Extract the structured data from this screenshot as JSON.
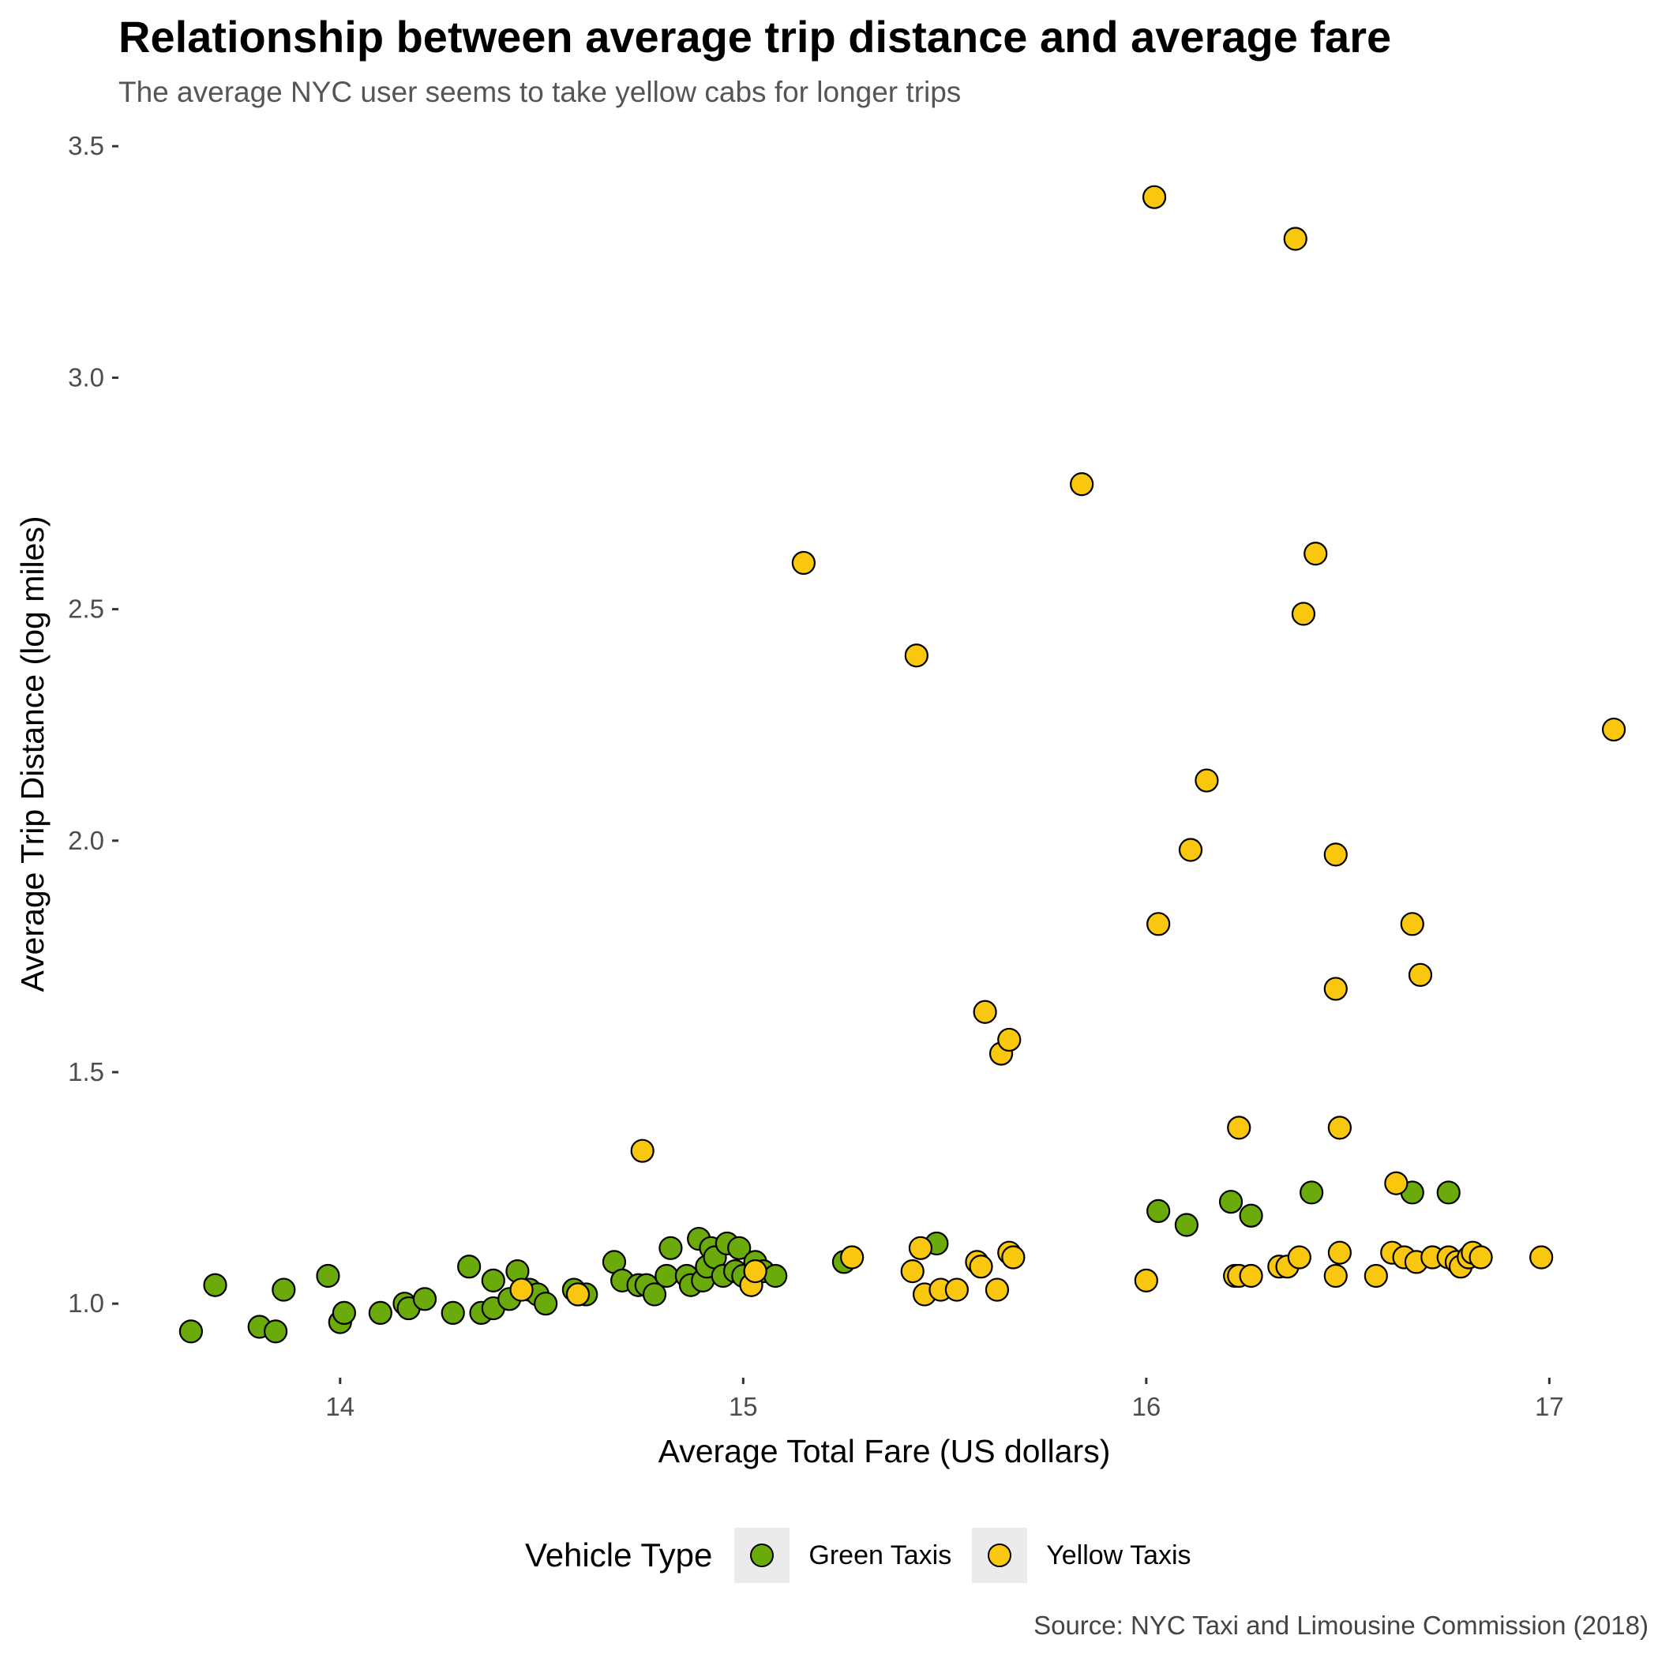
{
  "chart_data": {
    "type": "scatter",
    "title": "Relationship between average trip distance and average fare",
    "subtitle": "The average NYC user seems to take yellow cabs for longer trips",
    "caption": "Source: NYC Taxi and Limousine Commission (2018)",
    "xlabel": "Average Total Fare (US dollars)",
    "ylabel": "Average Trip Distance (log miles)",
    "xlim": [
      13.45,
      17.25
    ],
    "ylim": [
      0.84,
      3.56
    ],
    "xticks": [
      14,
      15,
      16,
      17
    ],
    "xtick_labels": [
      "14",
      "15",
      "16",
      "17"
    ],
    "yticks": [
      1.0,
      1.5,
      2.0,
      2.5,
      3.0,
      3.5
    ],
    "ytick_labels": [
      "1.0",
      "1.5",
      "2.0",
      "2.5",
      "3.0",
      "3.5"
    ],
    "grid": false,
    "legend": {
      "title": "Vehicle Type",
      "position": "bottom"
    },
    "series": [
      {
        "name": "Green Taxis",
        "color": "#6aaa0a",
        "points": [
          [
            13.63,
            0.94
          ],
          [
            13.69,
            1.04
          ],
          [
            13.8,
            0.95
          ],
          [
            13.84,
            0.94
          ],
          [
            13.86,
            1.03
          ],
          [
            13.97,
            1.06
          ],
          [
            14.0,
            0.96
          ],
          [
            14.01,
            0.98
          ],
          [
            14.1,
            0.98
          ],
          [
            14.16,
            1.0
          ],
          [
            14.17,
            0.99
          ],
          [
            14.21,
            1.01
          ],
          [
            14.28,
            0.98
          ],
          [
            14.32,
            1.08
          ],
          [
            14.35,
            0.98
          ],
          [
            14.38,
            1.05
          ],
          [
            14.38,
            0.99
          ],
          [
            14.42,
            1.01
          ],
          [
            14.44,
            1.07
          ],
          [
            14.47,
            1.03
          ],
          [
            14.49,
            1.02
          ],
          [
            14.51,
            1.0
          ],
          [
            14.58,
            1.03
          ],
          [
            14.59,
            1.02
          ],
          [
            14.61,
            1.02
          ],
          [
            14.68,
            1.09
          ],
          [
            14.7,
            1.05
          ],
          [
            14.74,
            1.04
          ],
          [
            14.76,
            1.04
          ],
          [
            14.78,
            1.02
          ],
          [
            14.81,
            1.06
          ],
          [
            14.82,
            1.12
          ],
          [
            14.86,
            1.06
          ],
          [
            14.87,
            1.04
          ],
          [
            14.89,
            1.14
          ],
          [
            14.9,
            1.05
          ],
          [
            14.91,
            1.08
          ],
          [
            14.92,
            1.12
          ],
          [
            14.93,
            1.1
          ],
          [
            14.95,
            1.06
          ],
          [
            14.96,
            1.13
          ],
          [
            14.98,
            1.07
          ],
          [
            14.99,
            1.12
          ],
          [
            15.0,
            1.06
          ],
          [
            15.03,
            1.09
          ],
          [
            15.05,
            1.07
          ],
          [
            15.08,
            1.06
          ],
          [
            15.25,
            1.09
          ],
          [
            15.48,
            1.13
          ],
          [
            16.03,
            1.2
          ],
          [
            16.1,
            1.17
          ],
          [
            16.21,
            1.22
          ],
          [
            16.26,
            1.19
          ],
          [
            16.41,
            1.24
          ],
          [
            16.66,
            1.24
          ],
          [
            16.75,
            1.24
          ]
        ]
      },
      {
        "name": "Yellow Taxis",
        "color": "#f9c80e",
        "points": [
          [
            14.45,
            1.03
          ],
          [
            14.59,
            1.02
          ],
          [
            14.75,
            1.33
          ],
          [
            15.02,
            1.04
          ],
          [
            15.03,
            1.07
          ],
          [
            15.15,
            2.6
          ],
          [
            15.27,
            1.1
          ],
          [
            15.42,
            1.07
          ],
          [
            15.43,
            2.4
          ],
          [
            15.44,
            1.12
          ],
          [
            15.45,
            1.02
          ],
          [
            15.49,
            1.03
          ],
          [
            15.53,
            1.03
          ],
          [
            15.58,
            1.09
          ],
          [
            15.59,
            1.08
          ],
          [
            15.6,
            1.63
          ],
          [
            15.63,
            1.03
          ],
          [
            15.64,
            1.54
          ],
          [
            15.66,
            1.57
          ],
          [
            15.66,
            1.11
          ],
          [
            15.67,
            1.1
          ],
          [
            15.84,
            2.77
          ],
          [
            16.0,
            1.05
          ],
          [
            16.02,
            3.39
          ],
          [
            16.03,
            1.82
          ],
          [
            16.11,
            1.98
          ],
          [
            16.15,
            2.13
          ],
          [
            16.22,
            1.06
          ],
          [
            16.23,
            1.38
          ],
          [
            16.23,
            1.06
          ],
          [
            16.26,
            1.06
          ],
          [
            16.33,
            1.08
          ],
          [
            16.35,
            1.08
          ],
          [
            16.37,
            3.3
          ],
          [
            16.38,
            1.1
          ],
          [
            16.39,
            2.49
          ],
          [
            16.42,
            2.62
          ],
          [
            16.47,
            1.97
          ],
          [
            16.47,
            1.68
          ],
          [
            16.47,
            1.06
          ],
          [
            16.48,
            1.11
          ],
          [
            16.48,
            1.38
          ],
          [
            16.57,
            1.06
          ],
          [
            16.61,
            1.11
          ],
          [
            16.62,
            1.26
          ],
          [
            16.64,
            1.1
          ],
          [
            16.66,
            1.82
          ],
          [
            16.67,
            1.09
          ],
          [
            16.68,
            1.71
          ],
          [
            16.71,
            1.1
          ],
          [
            16.75,
            1.1
          ],
          [
            16.77,
            1.09
          ],
          [
            16.78,
            1.08
          ],
          [
            16.8,
            1.1
          ],
          [
            16.81,
            1.11
          ],
          [
            16.83,
            1.1
          ],
          [
            16.98,
            1.1
          ],
          [
            17.16,
            2.24
          ]
        ]
      }
    ]
  }
}
